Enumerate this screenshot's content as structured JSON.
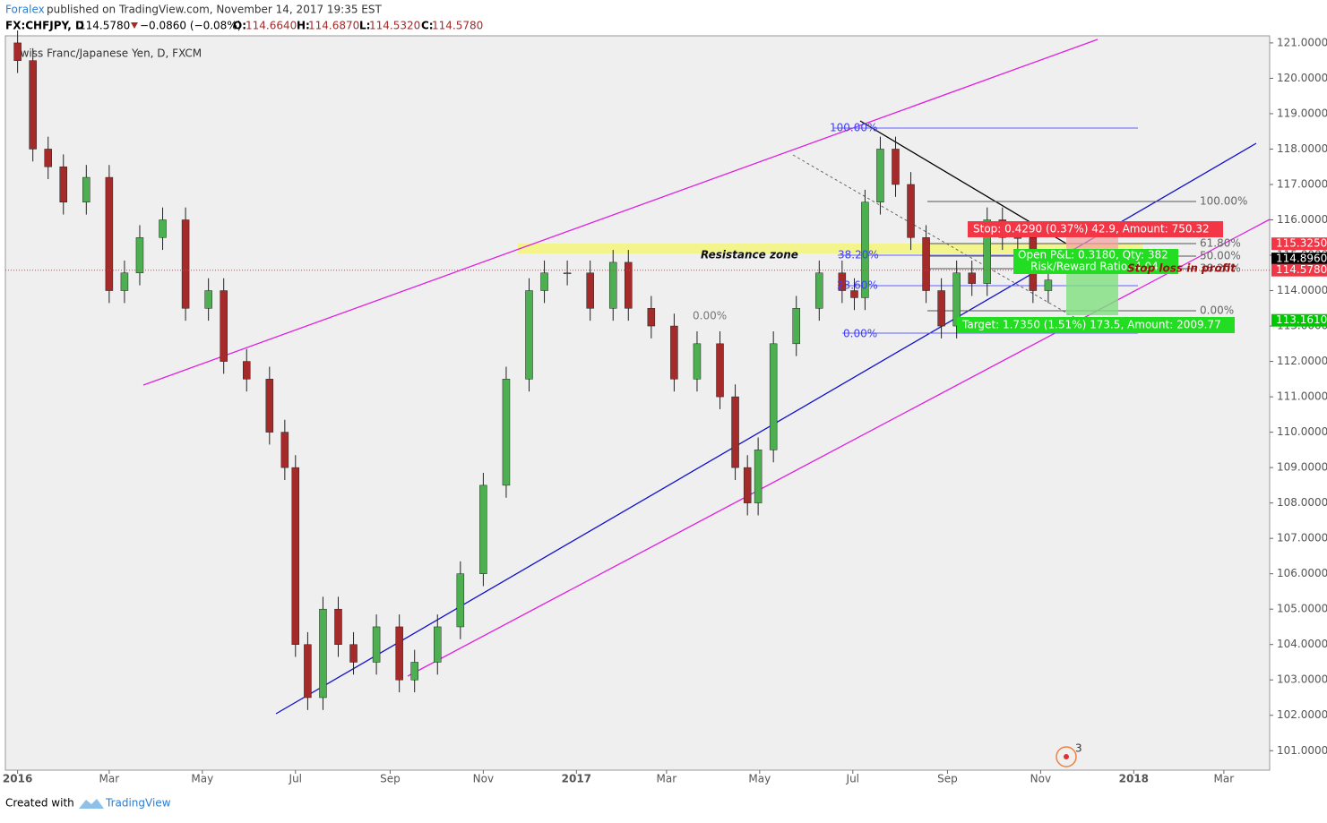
{
  "header": {
    "author": "Foralex",
    "published": "published on TradingView.com, November 14, 2017 19:35 EST",
    "symbol": "FX:CHFJPY, D",
    "last": "114.5780",
    "change": "−0.0860 (−0.08%)",
    "open_label": "O:",
    "open": "114.6640",
    "high_label": "H:",
    "high": "114.6870",
    "low_label": "L:",
    "low": "114.5320",
    "close_label": "C:",
    "close": "114.5780"
  },
  "chart_data": {
    "type": "candlestick",
    "title": "Swiss Franc/Japanese Yen, D, FXCM",
    "up_color": "#4caf50",
    "down_color": "#a52a2a",
    "xlim": [
      -8,
      820
    ],
    "ylim": [
      100.45,
      121.2
    ],
    "xticks": [
      {
        "value": 0,
        "label": "2016"
      },
      {
        "value": 60,
        "label": "Mar"
      },
      {
        "value": 121,
        "label": "May"
      },
      {
        "value": 182,
        "label": "Jul"
      },
      {
        "value": 244,
        "label": "Sep"
      },
      {
        "value": 305,
        "label": "Nov"
      },
      {
        "value": 366,
        "label": "2017"
      },
      {
        "value": 425,
        "label": "Mar"
      },
      {
        "value": 486,
        "label": "May"
      },
      {
        "value": 547,
        "label": "Jul"
      },
      {
        "value": 609,
        "label": "Sep"
      },
      {
        "value": 670,
        "label": "Nov"
      },
      {
        "value": 731,
        "label": "2018"
      },
      {
        "value": 790,
        "label": "Mar"
      }
    ],
    "yticks": [
      {
        "value": 101,
        "label": "101.0000"
      },
      {
        "value": 102,
        "label": "102.0000"
      },
      {
        "value": 103,
        "label": "103.0000"
      },
      {
        "value": 104,
        "label": "104.0000"
      },
      {
        "value": 105,
        "label": "105.0000"
      },
      {
        "value": 106,
        "label": "106.0000"
      },
      {
        "value": 107,
        "label": "107.0000"
      },
      {
        "value": 108,
        "label": "108.0000"
      },
      {
        "value": 109,
        "label": "109.0000"
      },
      {
        "value": 110,
        "label": "110.0000"
      },
      {
        "value": 111,
        "label": "111.0000"
      },
      {
        "value": 112,
        "label": "112.0000"
      },
      {
        "value": 113,
        "label": "113.0000"
      },
      {
        "value": 114,
        "label": "114.0000"
      },
      {
        "value": 115,
        "label": "115.0000"
      },
      {
        "value": 116,
        "label": "116.0000"
      },
      {
        "value": 117,
        "label": "117.0000"
      },
      {
        "value": 118,
        "label": "118.0000"
      },
      {
        "value": 119,
        "label": "119.0000"
      },
      {
        "value": 120,
        "label": "120.0000"
      },
      {
        "value": 121,
        "label": "121.0000"
      }
    ],
    "candles": [
      [
        0,
        121.0,
        121.35,
        120.15,
        120.5
      ],
      [
        10,
        120.5,
        120.85,
        117.65,
        118
      ],
      [
        20,
        118,
        118.35,
        117.15,
        117.5
      ],
      [
        30,
        117.5,
        117.85,
        116.15,
        116.5
      ],
      [
        45,
        116.5,
        117.55,
        116.15,
        117.2
      ],
      [
        60,
        117.2,
        117.55,
        113.65,
        114
      ],
      [
        70,
        114,
        114.85,
        113.65,
        114.5
      ],
      [
        80,
        114.5,
        115.85,
        114.15,
        115.5
      ],
      [
        95,
        115.5,
        116.35,
        115.15,
        116
      ],
      [
        110,
        116,
        116.35,
        113.15,
        113.5
      ],
      [
        125,
        113.5,
        114.35,
        113.15,
        114
      ],
      [
        135,
        114,
        114.35,
        111.65,
        112
      ],
      [
        150,
        112,
        112.35,
        111.15,
        111.5
      ],
      [
        165,
        111.5,
        111.85,
        109.65,
        110
      ],
      [
        175,
        110,
        110.35,
        108.65,
        109
      ],
      [
        182,
        109,
        109.35,
        103.65,
        104
      ],
      [
        190,
        104,
        104.35,
        102.15,
        102.5
      ],
      [
        200,
        102.5,
        105.35,
        102.15,
        105
      ],
      [
        210,
        105,
        105.35,
        103.65,
        104
      ],
      [
        220,
        104,
        104.35,
        103.15,
        103.5
      ],
      [
        235,
        103.5,
        104.85,
        103.15,
        104.5
      ],
      [
        250,
        104.5,
        104.85,
        102.65,
        103
      ],
      [
        260,
        103,
        103.85,
        102.65,
        103.5
      ],
      [
        275,
        103.5,
        104.85,
        103.15,
        104.5
      ],
      [
        290,
        104.5,
        106.35,
        104.15,
        106
      ],
      [
        305,
        106,
        108.85,
        105.65,
        108.5
      ],
      [
        320,
        108.5,
        111.85,
        108.15,
        111.5
      ],
      [
        335,
        111.5,
        114.35,
        111.15,
        114
      ],
      [
        345,
        114,
        114.85,
        113.65,
        114.5
      ],
      [
        360,
        114.5,
        114.85,
        114.15,
        114.5
      ],
      [
        375,
        114.5,
        114.85,
        113.15,
        113.5
      ],
      [
        390,
        113.5,
        115.15,
        113.15,
        114.8
      ],
      [
        400,
        114.8,
        115.15,
        113.15,
        113.5
      ],
      [
        415,
        113.5,
        113.85,
        112.65,
        113
      ],
      [
        430,
        113,
        113.35,
        111.15,
        111.5
      ],
      [
        445,
        111.5,
        112.85,
        111.15,
        112.5
      ],
      [
        460,
        112.5,
        112.85,
        110.65,
        111
      ],
      [
        470,
        111,
        111.35,
        108.65,
        109
      ],
      [
        478,
        109,
        109.35,
        107.65,
        108
      ],
      [
        485,
        108,
        109.85,
        107.65,
        109.5
      ],
      [
        495,
        109.5,
        112.85,
        109.15,
        112.5
      ],
      [
        510,
        112.5,
        113.85,
        112.15,
        113.5
      ],
      [
        525,
        113.5,
        114.85,
        113.15,
        114.5
      ],
      [
        540,
        114.5,
        114.85,
        113.65,
        114
      ],
      [
        548,
        114,
        114.35,
        113.45,
        113.8
      ],
      [
        555,
        113.8,
        116.85,
        113.45,
        116.5
      ],
      [
        565,
        116.5,
        118.35,
        116.15,
        118
      ],
      [
        575,
        118,
        118.35,
        116.65,
        117
      ],
      [
        585,
        117,
        117.35,
        115.15,
        115.5
      ],
      [
        595,
        115.5,
        115.85,
        113.65,
        114
      ],
      [
        605,
        114,
        114.35,
        112.65,
        113
      ],
      [
        615,
        113,
        114.85,
        112.65,
        114.5
      ],
      [
        625,
        114.5,
        114.85,
        113.85,
        114.2
      ],
      [
        635,
        114.2,
        116.35,
        113.85,
        116
      ],
      [
        645,
        116,
        116.35,
        115.15,
        115.5
      ],
      [
        655,
        115.5,
        115.85,
        115.15,
        115.5
      ],
      [
        665,
        115.5,
        115.85,
        113.65,
        114
      ],
      [
        675,
        114,
        114.65,
        113.65,
        114.3
      ],
      [
        683,
        114.664,
        114.687,
        114.532,
        114.578
      ]
    ],
    "price_tags": [
      {
        "value": 115.325,
        "label": "115.3250",
        "color": "#f23645"
      },
      {
        "value": 114.896,
        "label": "114.8960",
        "color": "#000000"
      },
      {
        "value": 114.578,
        "label": "114.5780",
        "color": "#f23645"
      },
      {
        "value": 113.161,
        "label": "113.1610",
        "color": "#00c800"
      }
    ],
    "annotations": {
      "resistance": "Resistance zone",
      "fib_a": [
        "100.00%",
        "38.20%",
        "23.60%",
        "0.00%",
        "0.00%"
      ],
      "fib_b": [
        "100.00%",
        "61.80%",
        "50.00%",
        "38.20%",
        "0.00%"
      ],
      "stop": "Stop: 0.4290 (0.37%) 42.9, Amount: 750.32",
      "open_pl": "Open P&L: 0.3180, Qty: 382",
      "risk_reward": "Risk/Reward Ratio: 4.04",
      "stop_loss": "Stop loss in profit",
      "target": "Target: 1.7350 (1.51%) 173.5, Amount: 2009.77",
      "badge": "3"
    }
  },
  "footer": {
    "created": "Created with",
    "brand": "TradingView"
  }
}
